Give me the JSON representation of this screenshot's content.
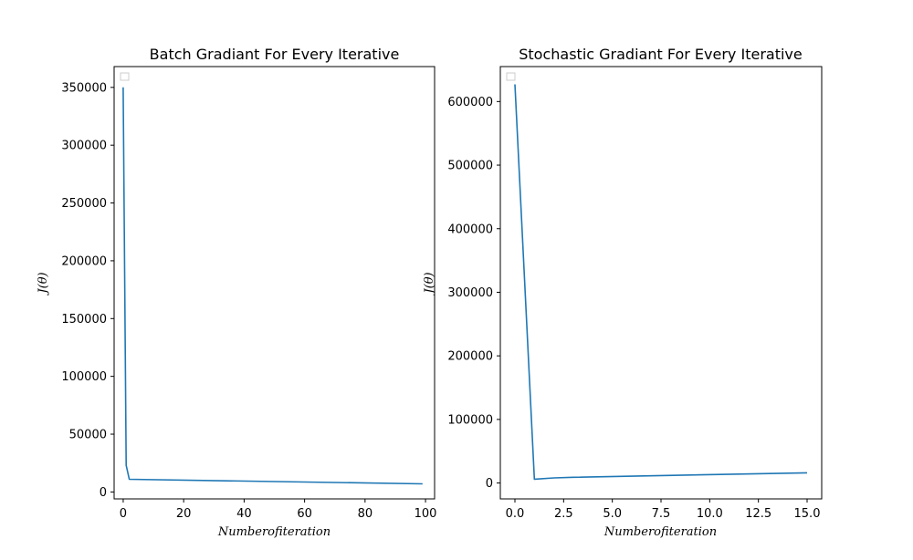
{
  "chart_data": [
    {
      "type": "line",
      "title": "Batch Gradiant For Every Iterative",
      "xlabel": "Numberofiteration",
      "ylabel": "J(θ)",
      "xlim": [
        -3,
        103
      ],
      "ylim": [
        -6000,
        368000
      ],
      "xticks": [
        0,
        20,
        40,
        60,
        80,
        100
      ],
      "xtick_labels": [
        "0",
        "20",
        "40",
        "60",
        "80",
        "100"
      ],
      "yticks": [
        0,
        50000,
        100000,
        150000,
        200000,
        250000,
        300000,
        350000
      ],
      "ytick_labels": [
        "0",
        "50000",
        "100000",
        "150000",
        "200000",
        "250000",
        "300000",
        "350000"
      ],
      "legend": "upper-left, empty",
      "grid": false,
      "series": [
        {
          "x": [
            0,
            1,
            2,
            99
          ],
          "y": [
            350000,
            23000,
            11000,
            7000
          ],
          "color": "#1f77b4"
        }
      ]
    },
    {
      "type": "line",
      "title": "Stochastic Gradiant For Every Iterative",
      "xlabel": "Numberofiteration",
      "ylabel": "J(θ)",
      "xlim": [
        -0.75,
        15.75
      ],
      "ylim": [
        -25000,
        655000
      ],
      "xticks": [
        0,
        2.5,
        5,
        7.5,
        10,
        12.5,
        15
      ],
      "xtick_labels": [
        "0.0",
        "2.5",
        "5.0",
        "7.5",
        "10.0",
        "12.5",
        "15.0"
      ],
      "yticks": [
        0,
        100000,
        200000,
        300000,
        400000,
        500000,
        600000
      ],
      "ytick_labels": [
        "0",
        "100000",
        "200000",
        "300000",
        "400000",
        "500000",
        "600000"
      ],
      "legend": "upper-left, empty",
      "grid": false,
      "series": [
        {
          "x": [
            0,
            1,
            2,
            3,
            15
          ],
          "y": [
            627000,
            6000,
            8000,
            9000,
            16000
          ],
          "color": "#1f77b4"
        }
      ]
    }
  ]
}
